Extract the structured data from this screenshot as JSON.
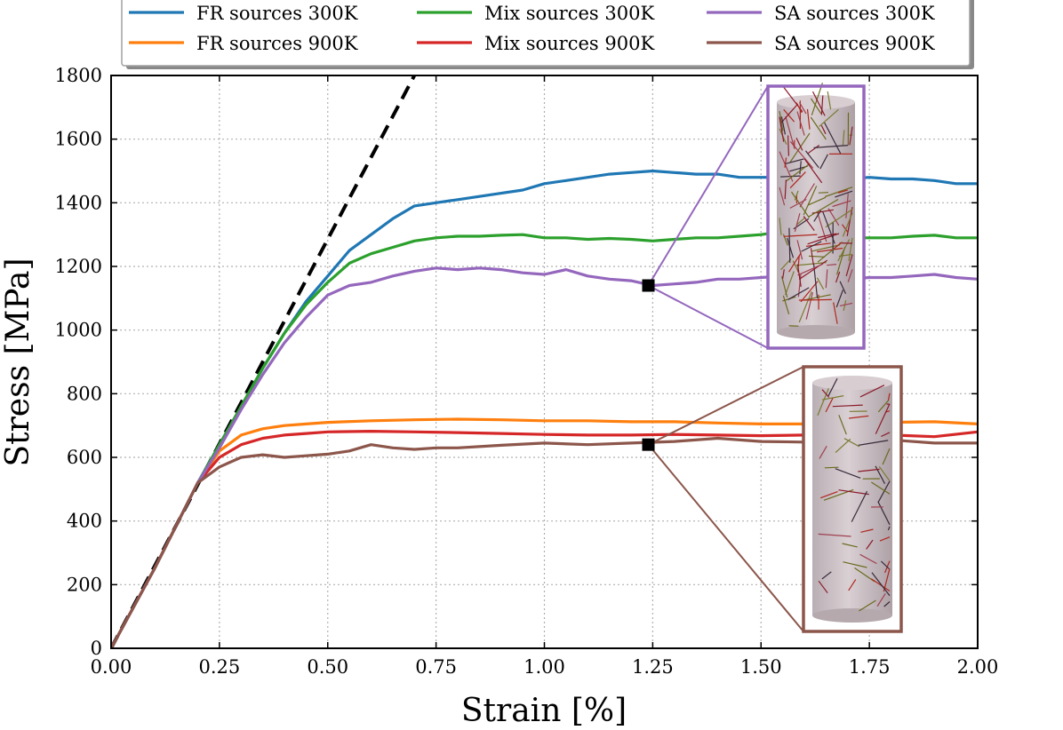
{
  "chart_data": {
    "type": "line",
    "title": "",
    "xlabel": "Strain [%]",
    "ylabel": "Stress [MPa]",
    "xlim": [
      0,
      2
    ],
    "ylim": [
      0,
      1800
    ],
    "xticks": [
      0,
      0.25,
      0.5,
      0.75,
      1.0,
      1.25,
      1.5,
      1.75,
      2.0
    ],
    "xtick_labels": [
      "0.00",
      "0.25",
      "0.50",
      "0.75",
      "1.00",
      "1.25",
      "1.50",
      "1.75",
      "2.00"
    ],
    "yticks": [
      0,
      200,
      400,
      600,
      800,
      1000,
      1200,
      1400,
      1600,
      1800
    ],
    "ytick_labels": [
      "0",
      "200",
      "400",
      "600",
      "800",
      "1000",
      "1200",
      "1400",
      "1600",
      "1800"
    ],
    "grid": true,
    "legend_position": "top",
    "reference_line": {
      "style": "dashed",
      "color": "#000000",
      "x": [
        0,
        0.7
      ],
      "y": [
        0,
        1800
      ]
    },
    "series": [
      {
        "name": "FR sources 300K",
        "color": "#1f77b4",
        "x": [
          0,
          0.1,
          0.2,
          0.25,
          0.3,
          0.35,
          0.4,
          0.45,
          0.5,
          0.55,
          0.6,
          0.65,
          0.7,
          0.75,
          0.8,
          0.85,
          0.9,
          0.95,
          1.0,
          1.05,
          1.1,
          1.15,
          1.2,
          1.25,
          1.3,
          1.35,
          1.4,
          1.45,
          1.5,
          1.55,
          1.6,
          1.65,
          1.7,
          1.75,
          1.8,
          1.85,
          1.9,
          1.95,
          2.0
        ],
        "y": [
          0,
          250,
          520,
          640,
          760,
          880,
          990,
          1090,
          1170,
          1250,
          1300,
          1350,
          1390,
          1400,
          1410,
          1420,
          1430,
          1440,
          1460,
          1470,
          1480,
          1490,
          1495,
          1500,
          1495,
          1490,
          1490,
          1480,
          1480,
          1480,
          1480,
          1475,
          1475,
          1480,
          1475,
          1475,
          1470,
          1460,
          1460
        ]
      },
      {
        "name": "FR sources 900K",
        "color": "#ff7f0e",
        "x": [
          0,
          0.1,
          0.2,
          0.25,
          0.3,
          0.35,
          0.4,
          0.45,
          0.5,
          0.6,
          0.7,
          0.8,
          0.9,
          1.0,
          1.1,
          1.2,
          1.3,
          1.4,
          1.5,
          1.6,
          1.7,
          1.8,
          1.9,
          2.0
        ],
        "y": [
          0,
          250,
          520,
          620,
          670,
          690,
          700,
          705,
          710,
          715,
          718,
          720,
          718,
          715,
          715,
          712,
          712,
          708,
          705,
          705,
          708,
          710,
          712,
          705
        ]
      },
      {
        "name": "Mix sources 300K",
        "color": "#2ca02c",
        "x": [
          0,
          0.1,
          0.2,
          0.25,
          0.3,
          0.35,
          0.4,
          0.45,
          0.5,
          0.55,
          0.6,
          0.65,
          0.7,
          0.75,
          0.8,
          0.85,
          0.9,
          0.95,
          1.0,
          1.05,
          1.1,
          1.15,
          1.2,
          1.25,
          1.3,
          1.35,
          1.4,
          1.45,
          1.5,
          1.55,
          1.6,
          1.65,
          1.7,
          1.75,
          1.8,
          1.85,
          1.9,
          1.95,
          2.0
        ],
        "y": [
          0,
          250,
          520,
          640,
          760,
          880,
          990,
          1080,
          1150,
          1210,
          1240,
          1260,
          1280,
          1290,
          1295,
          1295,
          1298,
          1300,
          1290,
          1290,
          1285,
          1288,
          1285,
          1280,
          1285,
          1290,
          1290,
          1295,
          1300,
          1310,
          1300,
          1295,
          1290,
          1290,
          1290,
          1295,
          1298,
          1290,
          1290
        ]
      },
      {
        "name": "Mix sources 900K",
        "color": "#d62728",
        "x": [
          0,
          0.1,
          0.2,
          0.25,
          0.3,
          0.35,
          0.4,
          0.45,
          0.5,
          0.6,
          0.7,
          0.8,
          0.9,
          1.0,
          1.1,
          1.2,
          1.3,
          1.4,
          1.5,
          1.6,
          1.7,
          1.8,
          1.9,
          2.0
        ],
        "y": [
          0,
          250,
          520,
          600,
          640,
          660,
          670,
          675,
          680,
          682,
          680,
          678,
          675,
          672,
          670,
          670,
          672,
          670,
          668,
          670,
          672,
          670,
          665,
          680
        ]
      },
      {
        "name": "SA sources 300K",
        "color": "#9467bd",
        "x": [
          0,
          0.1,
          0.2,
          0.25,
          0.3,
          0.35,
          0.4,
          0.45,
          0.5,
          0.55,
          0.6,
          0.65,
          0.7,
          0.75,
          0.8,
          0.85,
          0.9,
          0.95,
          1.0,
          1.05,
          1.1,
          1.15,
          1.2,
          1.25,
          1.3,
          1.35,
          1.4,
          1.45,
          1.5,
          1.55,
          1.6,
          1.65,
          1.7,
          1.75,
          1.8,
          1.85,
          1.9,
          1.95,
          2.0
        ],
        "y": [
          0,
          250,
          520,
          630,
          750,
          860,
          960,
          1040,
          1110,
          1140,
          1150,
          1170,
          1185,
          1195,
          1190,
          1195,
          1190,
          1180,
          1175,
          1190,
          1170,
          1160,
          1155,
          1140,
          1145,
          1150,
          1160,
          1160,
          1165,
          1170,
          1160,
          1165,
          1160,
          1165,
          1165,
          1170,
          1175,
          1165,
          1160
        ]
      },
      {
        "name": "SA sources 900K",
        "color": "#8c564b",
        "x": [
          0,
          0.1,
          0.2,
          0.25,
          0.3,
          0.35,
          0.4,
          0.45,
          0.5,
          0.55,
          0.6,
          0.65,
          0.7,
          0.75,
          0.8,
          0.9,
          1.0,
          1.1,
          1.2,
          1.3,
          1.4,
          1.5,
          1.6,
          1.7,
          1.8,
          1.9,
          2.0
        ],
        "y": [
          0,
          250,
          520,
          570,
          600,
          608,
          600,
          605,
          610,
          620,
          640,
          630,
          625,
          630,
          630,
          638,
          645,
          640,
          645,
          650,
          660,
          650,
          648,
          650,
          655,
          645,
          645
        ]
      }
    ],
    "markers": [
      {
        "x": 1.24,
        "y": 1140,
        "color": "#000000"
      },
      {
        "x": 1.24,
        "y": 640,
        "color": "#000000"
      }
    ],
    "insets": [
      {
        "series": "SA sources 300K",
        "border_color": "#9467bd",
        "anchor_x": 1.24,
        "anchor_y": 1140
      },
      {
        "series": "SA sources 900K",
        "border_color": "#8c564b",
        "anchor_x": 1.24,
        "anchor_y": 640
      }
    ]
  }
}
